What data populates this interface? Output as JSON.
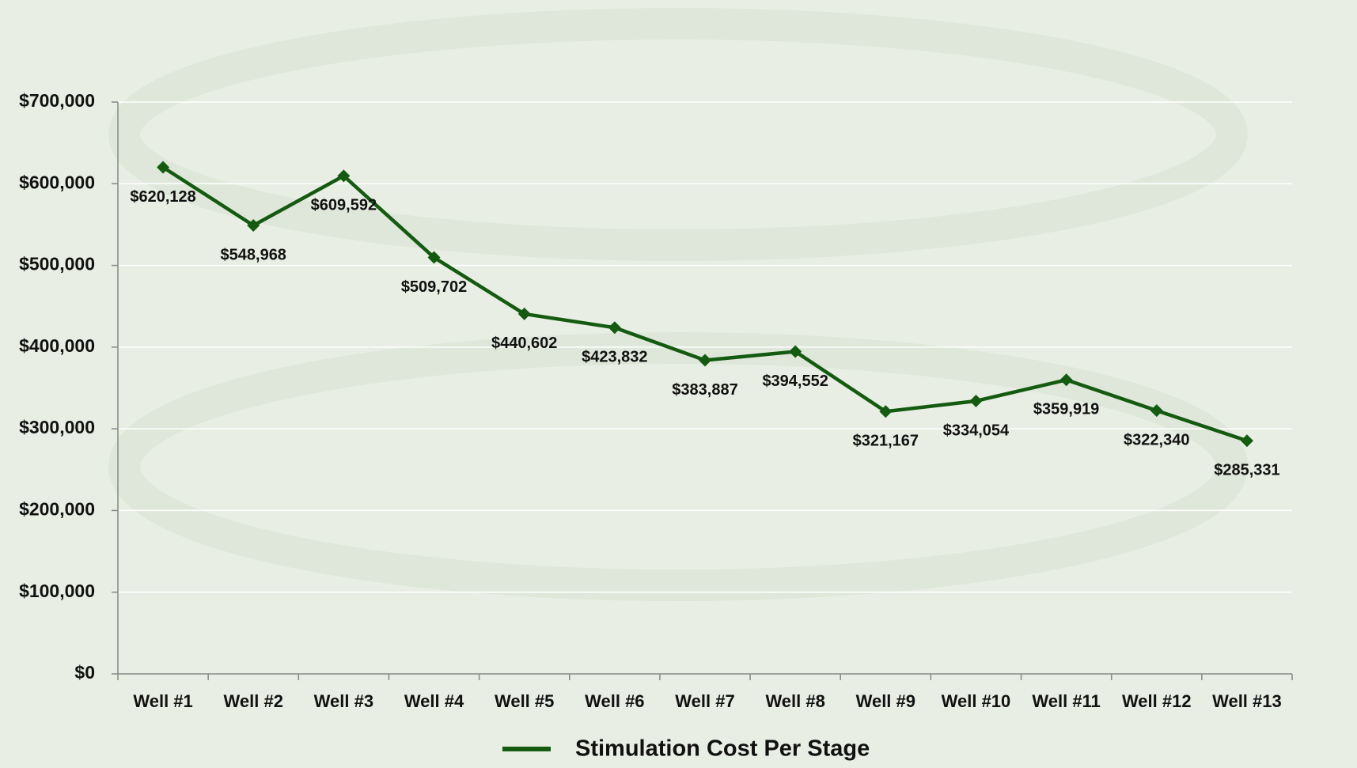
{
  "chart_data": {
    "type": "line",
    "categories": [
      "Well #1",
      "Well #2",
      "Well #3",
      "Well #4",
      "Well #5",
      "Well #6",
      "Well #7",
      "Well #8",
      "Well #9",
      "Well #10",
      "Well #11",
      "Well #12",
      "Well #13"
    ],
    "series": [
      {
        "name": "Stimulation Cost Per Stage",
        "color": "#145a10",
        "values": [
          620128,
          548968,
          609592,
          509702,
          440602,
          423832,
          383887,
          394552,
          321167,
          334054,
          359919,
          322340,
          285331
        ],
        "value_labels": [
          "$620,128",
          "$548,968",
          "$609,592",
          "$509,702",
          "$440,602",
          "$423,832",
          "$383,887",
          "$394,552",
          "$321,167",
          "$334,054",
          "$359,919",
          "$322,340",
          "$285,331"
        ]
      }
    ],
    "ylim": [
      0,
      700000
    ],
    "yticks": [
      {
        "value": 0,
        "label": "$0"
      },
      {
        "value": 100000,
        "label": "$100,000"
      },
      {
        "value": 200000,
        "label": "$200,000"
      },
      {
        "value": 300000,
        "label": "$300,000"
      },
      {
        "value": 400000,
        "label": "$400,000"
      },
      {
        "value": 500000,
        "label": "$500,000"
      },
      {
        "value": 600000,
        "label": "$600,000"
      },
      {
        "value": 700000,
        "label": "$700,000"
      }
    ],
    "grid": true,
    "legend": "bottom"
  }
}
